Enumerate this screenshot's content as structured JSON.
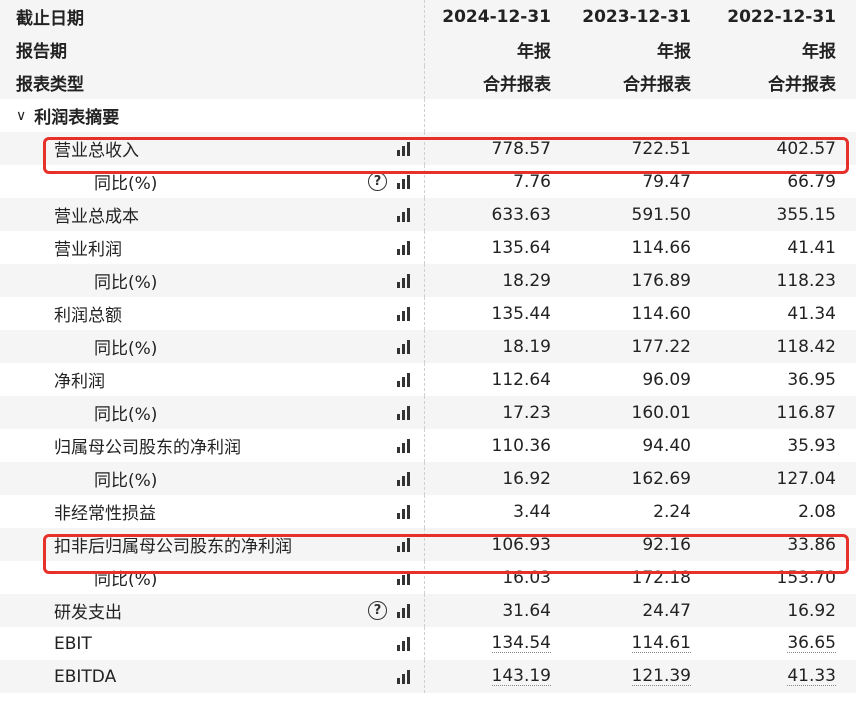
{
  "header": {
    "rows": [
      {
        "label": "截止日期",
        "cols": [
          "2024-12-31",
          "2023-12-31",
          "2022-12-31"
        ]
      },
      {
        "label": "报告期",
        "cols": [
          "年报",
          "年报",
          "年报"
        ]
      },
      {
        "label": "报表类型",
        "cols": [
          "合并报表",
          "合并报表",
          "合并报表"
        ]
      }
    ]
  },
  "section": {
    "label": "利润表摘要",
    "icon": "chevron-down-icon"
  },
  "rows": [
    {
      "label": "营业总收入",
      "level": 1,
      "help": false,
      "cols": [
        "778.57",
        "722.51",
        "402.57"
      ],
      "highlighted": true
    },
    {
      "label": "同比(%)",
      "level": 2,
      "help": true,
      "cols": [
        "7.76",
        "79.47",
        "66.79"
      ]
    },
    {
      "label": "营业总成本",
      "level": 1,
      "help": false,
      "cols": [
        "633.63",
        "591.50",
        "355.15"
      ]
    },
    {
      "label": "营业利润",
      "level": 1,
      "help": false,
      "cols": [
        "135.64",
        "114.66",
        "41.41"
      ]
    },
    {
      "label": "同比(%)",
      "level": 2,
      "help": false,
      "cols": [
        "18.29",
        "176.89",
        "118.23"
      ]
    },
    {
      "label": "利润总额",
      "level": 1,
      "help": false,
      "cols": [
        "135.44",
        "114.60",
        "41.34"
      ]
    },
    {
      "label": "同比(%)",
      "level": 2,
      "help": false,
      "cols": [
        "18.19",
        "177.22",
        "118.42"
      ]
    },
    {
      "label": "净利润",
      "level": 1,
      "help": false,
      "cols": [
        "112.64",
        "96.09",
        "36.95"
      ]
    },
    {
      "label": "同比(%)",
      "level": 2,
      "help": false,
      "cols": [
        "17.23",
        "160.01",
        "116.87"
      ]
    },
    {
      "label": "归属母公司股东的净利润",
      "level": 1,
      "help": false,
      "cols": [
        "110.36",
        "94.40",
        "35.93"
      ]
    },
    {
      "label": "同比(%)",
      "level": 2,
      "help": false,
      "cols": [
        "16.92",
        "162.69",
        "127.04"
      ]
    },
    {
      "label": "非经常性损益",
      "level": 1,
      "help": false,
      "cols": [
        "3.44",
        "2.24",
        "2.08"
      ]
    },
    {
      "label": "扣非后归属母公司股东的净利润",
      "level": 1,
      "help": false,
      "cols": [
        "106.93",
        "92.16",
        "33.86"
      ],
      "highlighted": true
    },
    {
      "label": "同比(%)",
      "level": 2,
      "help": false,
      "cols": [
        "16.03",
        "172.18",
        "153.70"
      ]
    },
    {
      "label": "研发支出",
      "level": 1,
      "help": true,
      "cols": [
        "31.64",
        "24.47",
        "16.92"
      ]
    },
    {
      "label": "EBIT",
      "level": 1,
      "help": false,
      "cols": [
        "134.54",
        "114.61",
        "36.65"
      ],
      "dotted": true
    },
    {
      "label": "EBITDA",
      "level": 1,
      "help": false,
      "cols": [
        "143.19",
        "121.39",
        "41.33"
      ],
      "dotted": true
    }
  ],
  "help_glyph": "?",
  "colors": {
    "highlight": "#e8302a",
    "row_alt": "#f5f5f5"
  }
}
